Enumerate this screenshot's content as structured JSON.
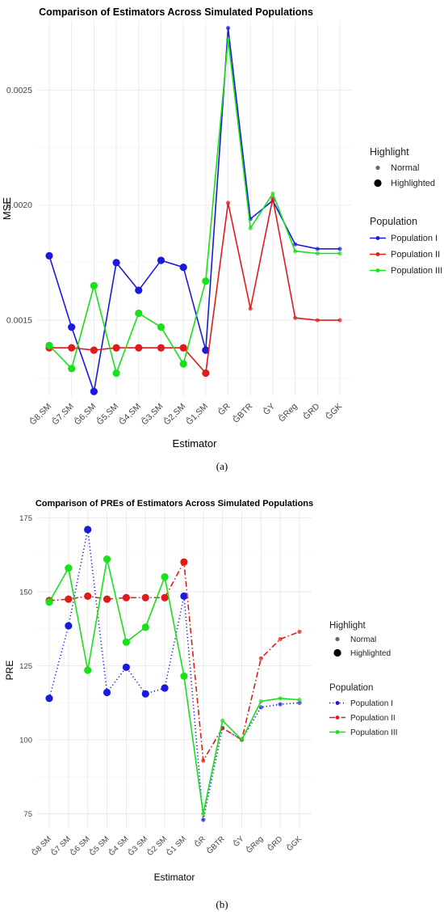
{
  "chart_data": [
    {
      "type": "line",
      "title": "Comparison of Estimators Across Simulated Populations",
      "xlabel": "Estimator",
      "ylabel": "MSE",
      "ylim": [
        0.00117,
        0.0028
      ],
      "yticks": [
        0.0015,
        0.002,
        0.0025
      ],
      "ytick_labels": [
        "0.0015",
        "0.0020",
        "0.0025"
      ],
      "grid": true,
      "legend_position": "right",
      "categories": [
        "Ĝ8,SM",
        "Ĝ7,SM",
        "Ĝ6,SM",
        "Ĝ5,SM",
        "Ĝ4,SM",
        "Ĝ3,SM",
        "Ĝ2,SM",
        "Ĝ1,SM",
        "ĜR",
        "ĜBTR",
        "ĜY",
        "ĜReg",
        "ĜRD",
        "ĜGK"
      ],
      "highlighted": [
        true,
        true,
        true,
        true,
        true,
        true,
        true,
        true,
        false,
        false,
        false,
        false,
        false,
        false
      ],
      "series": [
        {
          "name": "Population I",
          "color": "#1a1adb",
          "dash": "solid",
          "values": [
            0.00178,
            0.00147,
            0.00119,
            0.00175,
            0.00163,
            0.00176,
            0.00173,
            0.00137,
            0.00277,
            0.00194,
            0.00202,
            0.00183,
            0.00181,
            0.00181
          ]
        },
        {
          "name": "Population II",
          "color": "#e01b1b",
          "dash": "solid",
          "values": [
            0.00138,
            0.00138,
            0.00137,
            0.00138,
            0.00138,
            0.00138,
            0.00138,
            0.00127,
            0.00201,
            0.00155,
            0.00203,
            0.00151,
            0.0015,
            0.0015
          ]
        },
        {
          "name": "Population III",
          "color": "#19e019",
          "dash": "solid",
          "values": [
            0.00139,
            0.00129,
            0.00165,
            0.00127,
            0.00153,
            0.00147,
            0.00131,
            0.00167,
            0.00272,
            0.0019,
            0.00205,
            0.0018,
            0.00179,
            0.00179
          ]
        }
      ],
      "legend": {
        "highlight_title": "Highlight",
        "highlight_items": [
          "Normal",
          "Highlighted"
        ],
        "population_title": "Population"
      },
      "caption": "(a)"
    },
    {
      "type": "line",
      "title": "Comparison of PREs of Estimators Across Simulated Populations",
      "xlabel": "Estimator",
      "ylabel": "PRE",
      "ylim": [
        70,
        177
      ],
      "yticks": [
        75,
        100,
        125,
        150,
        175
      ],
      "ytick_labels": [
        "75",
        "100",
        "125",
        "150",
        "175"
      ],
      "grid": true,
      "legend_position": "right",
      "categories": [
        "Ĝ8 SM",
        "Ĝ7 SM",
        "Ĝ6 SM",
        "Ĝ5 SM",
        "Ĝ4 SM",
        "Ĝ3 SM",
        "Ĝ2 SM",
        "Ĝ1 SM",
        "ĜR",
        "ĜBTR",
        "ĜY",
        "ĜReg",
        "ĜRD",
        "ĜGK"
      ],
      "highlighted": [
        true,
        true,
        true,
        true,
        true,
        true,
        true,
        true,
        false,
        false,
        false,
        false,
        false,
        false
      ],
      "series": [
        {
          "name": "Population I",
          "color": "#1a1adb",
          "dash": "dotted",
          "values": [
            114,
            138.5,
            171,
            116,
            124.5,
            115.5,
            117.5,
            148.5,
            73,
            104,
            100,
            111,
            112,
            112.5
          ]
        },
        {
          "name": "Population II",
          "color": "#e01b1b",
          "dash": "dashdot",
          "values": [
            147,
            147.5,
            148.5,
            147.5,
            148,
            148,
            148,
            160,
            93,
            104,
            100,
            127.5,
            134,
            136.5
          ]
        },
        {
          "name": "Population III",
          "color": "#19e019",
          "dash": "solid",
          "values": [
            146.5,
            158,
            123.5,
            161,
            133,
            138,
            155,
            121.5,
            75,
            106.5,
            100,
            113,
            114,
            113.5
          ]
        }
      ],
      "legend": {
        "highlight_title": "Highlight",
        "highlight_items": [
          "Normal",
          "Highlighted"
        ],
        "population_title": "Population"
      },
      "caption": "(b)"
    }
  ]
}
